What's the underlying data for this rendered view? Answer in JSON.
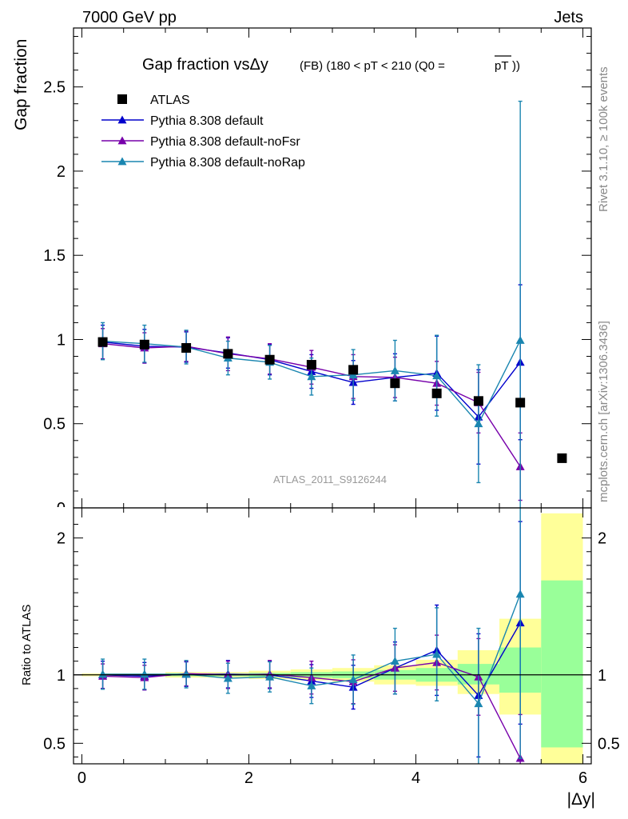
{
  "header": {
    "left": "7000 GeV pp",
    "right": "Jets"
  },
  "plot_title": {
    "main": "Gap fraction vsΔy",
    "sub": "(FB)  (180 < pT < 210 (Q0 =",
    "sub_overline": "pT",
    "sub_end": "))"
  },
  "side_text": {
    "rivet": "Rivet 3.1.10, ≥ 100k events",
    "mcplots": "mcplots.cern.ch [arXiv:1306.3436]"
  },
  "watermark": "ATLAS_2011_S9126244",
  "colors": {
    "data": "#000000",
    "default": "#0000cc",
    "noFsr": "#7700aa",
    "noRap": "#1a86b0",
    "band_outer": "#ffff99",
    "band_inner": "#99ff99"
  },
  "chart_data": [
    {
      "type": "scatter",
      "panel": "main",
      "ylabel": "Gap fraction",
      "xlim": [
        -0.1,
        6.1
      ],
      "ylim": [
        0,
        2.85
      ],
      "yticks": [
        0.5,
        1,
        1.5,
        2,
        2.5
      ],
      "ytick_labels": [
        "0.5",
        "1",
        "1.5",
        "2",
        "2.5"
      ],
      "legend_position": "top-left",
      "series": [
        {
          "name": "ATLAS",
          "key": "data",
          "marker": "square",
          "x": [
            0.25,
            0.75,
            1.25,
            1.75,
            2.25,
            2.75,
            3.25,
            3.75,
            4.25,
            4.75,
            5.25,
            5.75
          ],
          "y": [
            0.985,
            0.97,
            0.95,
            0.915,
            0.88,
            0.85,
            0.82,
            0.74,
            0.68,
            0.635,
            0.625,
            0.295
          ]
        },
        {
          "name": "Pythia 8.308 default",
          "key": "default",
          "marker": "triangle",
          "x": [
            0.25,
            0.75,
            1.25,
            1.75,
            2.25,
            2.75,
            3.25,
            3.75,
            4.25,
            4.75,
            5.25
          ],
          "y": [
            0.985,
            0.96,
            0.955,
            0.92,
            0.88,
            0.81,
            0.745,
            0.775,
            0.8,
            0.54,
            0.865
          ],
          "err": [
            0.1,
            0.1,
            0.09,
            0.09,
            0.09,
            0.1,
            0.13,
            0.14,
            0.22,
            0.28,
            0.46
          ]
        },
        {
          "name": "Pythia 8.308 default-noFsr",
          "key": "noFsr",
          "marker": "triangle",
          "x": [
            0.25,
            0.75,
            1.25,
            1.75,
            2.25,
            2.75,
            3.25,
            3.75,
            4.25,
            4.75,
            5.25
          ],
          "y": [
            0.975,
            0.95,
            0.96,
            0.915,
            0.885,
            0.835,
            0.78,
            0.775,
            0.74,
            0.625,
            0.245
          ],
          "err": [
            0.09,
            0.09,
            0.09,
            0.1,
            0.09,
            0.1,
            0.13,
            0.12,
            0.13,
            0.18,
            0.2
          ]
        },
        {
          "name": "Pythia 8.308 default-noRap",
          "key": "noRap",
          "marker": "triangle",
          "x": [
            0.25,
            0.75,
            1.25,
            1.75,
            2.25,
            2.75,
            3.25,
            3.75,
            4.25,
            4.75,
            5.25
          ],
          "y": [
            0.99,
            0.975,
            0.955,
            0.89,
            0.865,
            0.78,
            0.79,
            0.815,
            0.785,
            0.5,
            0.995
          ],
          "err": [
            0.11,
            0.11,
            0.1,
            0.1,
            0.1,
            0.11,
            0.15,
            0.18,
            0.24,
            0.35,
            1.42
          ]
        }
      ]
    },
    {
      "type": "scatter",
      "panel": "ratio",
      "ylabel": "Ratio to ATLAS",
      "xlabel": "|Δy|",
      "xlim": [
        -0.1,
        6.1
      ],
      "ylim": [
        0.35,
        2.22
      ],
      "xticks": [
        0,
        2,
        4,
        6
      ],
      "xtick_labels": [
        "0",
        "2",
        "4",
        "6"
      ],
      "yticks": [
        0.5,
        1,
        2
      ],
      "ytick_labels": [
        "0.5",
        "1",
        "2"
      ],
      "bands": {
        "x_edges": [
          0,
          0.5,
          1,
          1.5,
          2,
          2.5,
          3,
          3.5,
          4,
          4.5,
          5,
          5.5,
          6
        ],
        "outer_lo": [
          0.99,
          0.99,
          0.98,
          0.98,
          0.97,
          0.96,
          0.95,
          0.93,
          0.92,
          0.86,
          0.71,
          0.33
        ],
        "outer_hi": [
          1.01,
          1.01,
          1.02,
          1.02,
          1.03,
          1.04,
          1.05,
          1.07,
          1.11,
          1.18,
          1.41,
          2.18
        ],
        "inner_lo": [
          1.0,
          0.995,
          0.99,
          0.99,
          0.985,
          0.98,
          0.975,
          0.965,
          0.95,
          0.93,
          0.87,
          0.47
        ],
        "inner_hi": [
          1.0,
          1.005,
          1.01,
          1.01,
          1.015,
          1.02,
          1.025,
          1.035,
          1.05,
          1.08,
          1.2,
          1.69
        ]
      },
      "series": [
        {
          "name": "Pythia 8.308 default",
          "key": "default",
          "x": [
            0.25,
            0.75,
            1.25,
            1.75,
            2.25,
            2.75,
            3.25,
            3.75,
            4.25,
            4.75,
            5.25
          ],
          "y": [
            1.0,
            0.99,
            1.005,
            1.005,
            1.0,
            0.955,
            0.91,
            1.05,
            1.18,
            0.85,
            1.38
          ],
          "err": [
            0.1,
            0.1,
            0.09,
            0.1,
            0.1,
            0.12,
            0.16,
            0.19,
            0.33,
            0.45,
            0.74
          ]
        },
        {
          "name": "Pythia 8.308 default-noFsr",
          "key": "noFsr",
          "x": [
            0.25,
            0.75,
            1.25,
            1.75,
            2.25,
            2.75,
            3.25,
            3.75,
            4.25,
            4.75,
            5.25
          ],
          "y": [
            0.99,
            0.98,
            1.01,
            1.0,
            1.005,
            0.98,
            0.95,
            1.05,
            1.09,
            0.985,
            0.39
          ],
          "err": [
            0.09,
            0.09,
            0.09,
            0.1,
            0.1,
            0.12,
            0.16,
            0.17,
            0.2,
            0.28,
            0.32
          ]
        },
        {
          "name": "Pythia 8.308 default-noRap",
          "key": "noRap",
          "x": [
            0.25,
            0.75,
            1.25,
            1.75,
            2.25,
            2.75,
            3.25,
            3.75,
            4.25,
            4.75,
            5.25
          ],
          "y": [
            1.005,
            1.005,
            1.005,
            0.975,
            0.985,
            0.92,
            0.965,
            1.1,
            1.15,
            0.79,
            1.59
          ],
          "err": [
            0.11,
            0.11,
            0.1,
            0.11,
            0.11,
            0.13,
            0.18,
            0.24,
            0.34,
            0.55,
            1.2
          ]
        }
      ]
    }
  ]
}
